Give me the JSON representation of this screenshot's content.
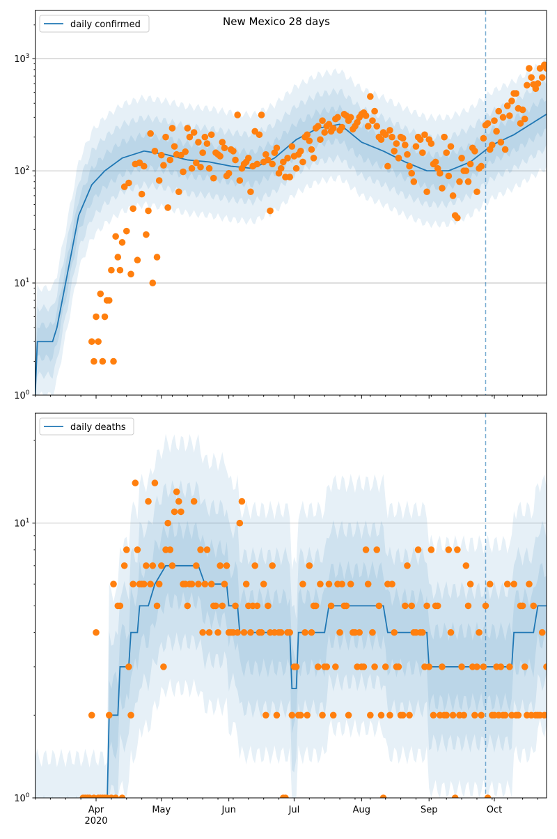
{
  "colors": {
    "line": "#1f77b4",
    "dots": "#ff7f0e",
    "band": "#1f77b4",
    "grid": "#b0b0b0",
    "marker": "#1f77b4"
  },
  "x_axis": {
    "start_date": "2020-03-04",
    "end_day": 235,
    "ticks": [
      {
        "label": "Apr",
        "day": 28,
        "sub": "2020"
      },
      {
        "label": "May",
        "day": 58
      },
      {
        "label": "Jun",
        "day": 89
      },
      {
        "label": "Jul",
        "day": 119
      },
      {
        "label": "Aug",
        "day": 150
      },
      {
        "label": "Sep",
        "day": 181
      },
      {
        "label": "Oct",
        "day": 211
      }
    ],
    "forecast_marker_day": 207
  },
  "chart_data": [
    {
      "type": "line",
      "title": "New Mexico 28 days",
      "legend": "daily confirmed",
      "legend_position": "top-left",
      "yscale": "log",
      "ylim_log10": [
        0,
        3.43
      ],
      "yticks": [
        {
          "base": "10",
          "exp": "0",
          "value": 1
        },
        {
          "base": "10",
          "exp": "1",
          "value": 10
        },
        {
          "base": "10",
          "exp": "2",
          "value": 100
        },
        {
          "base": "10",
          "exp": "3",
          "value": 1000
        }
      ],
      "median": [
        [
          0,
          1
        ],
        [
          1,
          3
        ],
        [
          8,
          3
        ],
        [
          10,
          4
        ],
        [
          14,
          10
        ],
        [
          17,
          20
        ],
        [
          20,
          40
        ],
        [
          26,
          75
        ],
        [
          32,
          100
        ],
        [
          40,
          130
        ],
        [
          50,
          150
        ],
        [
          60,
          140
        ],
        [
          70,
          125
        ],
        [
          80,
          120
        ],
        [
          90,
          110
        ],
        [
          100,
          105
        ],
        [
          110,
          130
        ],
        [
          120,
          190
        ],
        [
          130,
          240
        ],
        [
          140,
          260
        ],
        [
          150,
          180
        ],
        [
          160,
          150
        ],
        [
          170,
          120
        ],
        [
          180,
          100
        ],
        [
          190,
          100
        ],
        [
          200,
          120
        ],
        [
          210,
          170
        ],
        [
          220,
          210
        ],
        [
          235,
          320
        ]
      ],
      "band_factors": [
        1.4,
        2.0,
        3.0
      ],
      "points": [
        3,
        2,
        5,
        3,
        8,
        2,
        5,
        7,
        7,
        13,
        2,
        26,
        17,
        13,
        23,
        72,
        29,
        78,
        12,
        46,
        115,
        16,
        118,
        62,
        110,
        27,
        44,
        215,
        10,
        150,
        17,
        82,
        138,
        112,
        200,
        47,
        125,
        240,
        165,
        140,
        65,
        138,
        98,
        148,
        240,
        200,
        105,
        220,
        118,
        180,
        108,
        145,
        200,
        175,
        105,
        210,
        86,
        145,
        140,
        135,
        180,
        160,
        90,
        95,
        155,
        150,
        125,
        315,
        82,
        105,
        115,
        120,
        130,
        65,
        110,
        225,
        115,
        210,
        315,
        120,
        140,
        125,
        44,
        115,
        145,
        160,
        95,
        105,
        120,
        88,
        130,
        88,
        165,
        135,
        105,
        140,
        150,
        120,
        200,
        210,
        185,
        155,
        130,
        240,
        250,
        190,
        280,
        220,
        250,
        260,
        225,
        240,
        290,
        300,
        230,
        245,
        320,
        310,
        280,
        300,
        235,
        250,
        270,
        300,
        320,
        330,
        310,
        250,
        460,
        280,
        340,
        250,
        200,
        190,
        220,
        210,
        110,
        230,
        200,
        150,
        175,
        130,
        200,
        195,
        170,
        140,
        110,
        95,
        80,
        165,
        200,
        190,
        145,
        210,
        65,
        190,
        175,
        115,
        120,
        105,
        95,
        70,
        200,
        145,
        90,
        165,
        60,
        40,
        38,
        80,
        130,
        100,
        100,
        80,
        115,
        160,
        150,
        65,
        105,
        110,
        195,
        255,
        265,
        155,
        170,
        280,
        225,
        340,
        180,
        300,
        155,
        380,
        310,
        420,
        490,
        490,
        360,
        265,
        350,
        290,
        580,
        820,
        680,
        590,
        540,
        600,
        820,
        680,
        880,
        820
      ]
    },
    {
      "type": "line",
      "legend": "daily deaths",
      "legend_position": "top-left",
      "yscale": "log",
      "ylim_log10": [
        0,
        1.4
      ],
      "yticks": [
        {
          "base": "10",
          "exp": "0",
          "value": 1
        },
        {
          "base": "10",
          "exp": "1",
          "value": 10
        }
      ],
      "median": [
        [
          0,
          0.5
        ],
        [
          33,
          0.5
        ],
        [
          33,
          2
        ],
        [
          38,
          2
        ],
        [
          38,
          3
        ],
        [
          43,
          3
        ],
        [
          43,
          4
        ],
        [
          47,
          4
        ],
        [
          47,
          5
        ],
        [
          52,
          5
        ],
        [
          55,
          6
        ],
        [
          60,
          7
        ],
        [
          75,
          7
        ],
        [
          78,
          6
        ],
        [
          88,
          6
        ],
        [
          88,
          5
        ],
        [
          93,
          5
        ],
        [
          93,
          4
        ],
        [
          117,
          4
        ],
        [
          118,
          2.5
        ],
        [
          120,
          2.5
        ],
        [
          121,
          4
        ],
        [
          133,
          4
        ],
        [
          135,
          5
        ],
        [
          160,
          5
        ],
        [
          162,
          4
        ],
        [
          180,
          4
        ],
        [
          181,
          3
        ],
        [
          219,
          3
        ],
        [
          220,
          4
        ],
        [
          229,
          4
        ],
        [
          231,
          5
        ],
        [
          235,
          5
        ]
      ],
      "band_factors": [
        1.35,
        1.9,
        2.8
      ],
      "first_point_day": 22,
      "points": [
        1,
        1,
        1,
        1,
        2,
        1,
        4,
        1,
        1,
        1,
        1,
        1,
        2,
        1,
        6,
        1,
        5,
        5,
        1,
        7,
        8,
        3,
        2,
        6,
        14,
        8,
        6,
        6,
        6,
        7,
        12,
        6,
        7,
        14,
        5,
        6,
        7,
        3,
        8,
        10,
        8,
        7,
        11,
        13,
        12,
        11,
        6,
        6,
        5,
        6,
        6,
        12,
        7,
        6,
        8,
        4,
        6,
        8,
        4,
        6,
        5,
        5,
        4,
        7,
        5,
        6,
        7,
        4,
        4,
        4,
        5,
        4,
        10,
        12,
        4,
        6,
        5,
        4,
        5,
        7,
        5,
        4,
        4,
        6,
        2,
        5,
        4,
        7,
        4,
        2,
        4,
        4,
        1,
        1,
        4,
        4,
        2,
        3,
        3,
        2,
        2,
        6,
        4,
        2,
        7,
        4,
        5,
        5,
        3,
        6,
        2,
        3,
        3,
        6,
        5,
        2,
        3,
        6,
        4,
        6,
        5,
        5,
        2,
        6,
        4,
        4,
        3,
        4,
        3,
        3,
        8,
        6,
        2,
        4,
        3,
        8,
        5,
        2,
        1,
        3,
        6,
        2,
        6,
        4,
        3,
        3,
        2,
        2,
        5,
        7,
        2,
        5,
        4,
        4,
        8,
        4,
        4,
        3,
        5,
        3,
        8,
        2,
        5,
        5,
        2,
        3,
        2,
        2,
        8,
        4,
        2,
        1,
        8,
        2,
        3,
        2,
        7,
        5,
        6,
        3,
        2,
        3,
        4,
        2,
        3,
        5,
        1,
        6,
        2,
        2,
        3,
        2,
        3,
        2,
        2,
        6,
        3,
        2,
        6,
        2,
        2,
        5,
        5,
        3,
        2,
        6,
        2,
        5,
        2,
        2,
        2,
        4,
        2,
        3,
        1,
        5,
        1,
        6,
        4,
        5,
        4,
        4,
        3,
        1,
        1,
        5,
        7,
        1,
        6,
        3,
        7,
        6,
        2
      ]
    }
  ]
}
